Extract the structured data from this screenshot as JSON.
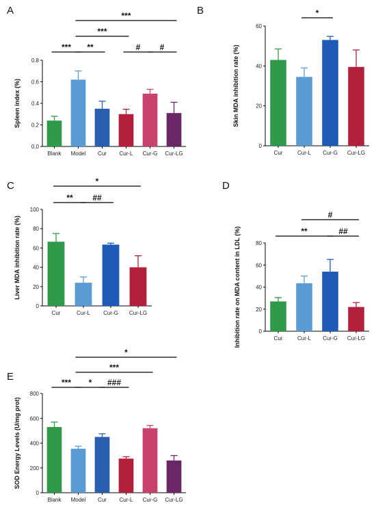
{
  "colors": {
    "green": "#2e9a4a",
    "light_blue": "#5b9bd5",
    "blue": "#2a5fb0",
    "royal_blue": "#1e5bb8",
    "crimson": "#b4203c",
    "pink": "#c8426e",
    "purple": "#6a2767"
  },
  "chart_data": [
    {
      "type": "bar",
      "panel_label": "A",
      "ylabel": "Spleen index (%)",
      "categories": [
        "Blank",
        "Model",
        "Cur",
        "Cur-L",
        "Cur-G",
        "Cur-LG"
      ],
      "values": [
        0.24,
        0.62,
        0.35,
        0.3,
        0.49,
        0.31
      ],
      "errors": [
        0.04,
        0.08,
        0.07,
        0.045,
        0.04,
        0.1
      ],
      "bar_colors": [
        "#2e9a4a",
        "#5b9bd5",
        "#2a5fb0",
        "#b4203c",
        "#c8426e",
        "#6a2767"
      ],
      "ylim": [
        0,
        0.8
      ],
      "yticks": [
        "0.0",
        "0.2",
        "0.4",
        "0.6",
        "0.8"
      ],
      "significance": [
        {
          "from": 0,
          "to": 1,
          "label": "***",
          "level": 0
        },
        {
          "from": 1,
          "to": 2,
          "label": "**",
          "level": 0
        },
        {
          "from": 3,
          "to": 4,
          "label": "#",
          "level": 0
        },
        {
          "from": 4,
          "to": 5,
          "label": "#",
          "level": 0
        },
        {
          "from": 1,
          "to": 3,
          "label": "***",
          "level": 1
        },
        {
          "from": 1,
          "to": 5,
          "label": "***",
          "level": 2
        }
      ]
    },
    {
      "type": "bar",
      "panel_label": "B",
      "ylabel": "Skin MDA inhibition rate (%)",
      "categories": [
        "Cur",
        "Cur-L",
        "Cur-G",
        "Cur-LG"
      ],
      "values": [
        43,
        34.5,
        53,
        39.5
      ],
      "errors": [
        5.5,
        4.5,
        1.8,
        8.5
      ],
      "bar_colors": [
        "#2e9a4a",
        "#5b9bd5",
        "#1e5bb8",
        "#b4203c"
      ],
      "ylim": [
        0,
        60
      ],
      "yticks": [
        "0",
        "20",
        "40",
        "60"
      ],
      "significance": [
        {
          "from": 1,
          "to": 2,
          "label": "*",
          "level": 0
        }
      ]
    },
    {
      "type": "bar",
      "panel_label": "C",
      "ylabel": "Liver MDA inhibition rate (%)",
      "categories": [
        "Cur",
        "Cur-L",
        "Cur-G",
        "Cur-LG"
      ],
      "values": [
        66.5,
        24,
        63.5,
        40
      ],
      "errors": [
        8.5,
        6,
        1.5,
        12
      ],
      "bar_colors": [
        "#2e9a4a",
        "#5b9bd5",
        "#1e5bb8",
        "#b4203c"
      ],
      "ylim": [
        0,
        100
      ],
      "yticks": [
        "0",
        "20",
        "40",
        "60",
        "80",
        "100"
      ],
      "significance": [
        {
          "from": 0,
          "to": 1,
          "label": "**",
          "level": 0
        },
        {
          "from": 1,
          "to": 2,
          "label": "##",
          "level": 0
        },
        {
          "from": 0,
          "to": 3,
          "label": "*",
          "level": 1
        }
      ]
    },
    {
      "type": "bar",
      "panel_label": "D",
      "ylabel": "Inhibition rate on MDA content in LDL (%)",
      "categories": [
        "Cur",
        "Cur-L",
        "Cur-G",
        "Cur-LG"
      ],
      "values": [
        27,
        43.5,
        54,
        22
      ],
      "errors": [
        3.5,
        6.5,
        11,
        4
      ],
      "bar_colors": [
        "#2e9a4a",
        "#5b9bd5",
        "#1e5bb8",
        "#b4203c"
      ],
      "ylim": [
        0,
        80
      ],
      "yticks": [
        "0",
        "20",
        "40",
        "60",
        "80"
      ],
      "significance": [
        {
          "from": 0,
          "to": 2,
          "label": "**",
          "level": 0
        },
        {
          "from": 2,
          "to": 3,
          "label": "##",
          "level": 0
        },
        {
          "from": 1,
          "to": 3,
          "label": "#",
          "level": 1
        }
      ]
    },
    {
      "type": "bar",
      "panel_label": "E",
      "ylabel": "SOD Energy Levels (U/mg prot)",
      "categories": [
        "Blank",
        "Model",
        "Cur",
        "Cur-L",
        "Cur-G",
        "Cur-LG"
      ],
      "values": [
        530,
        355,
        450,
        275,
        520,
        260
      ],
      "errors": [
        40,
        20,
        25,
        15,
        22,
        40
      ],
      "bar_colors": [
        "#2e9a4a",
        "#5b9bd5",
        "#2a5fb0",
        "#b4203c",
        "#c8426e",
        "#6a2767"
      ],
      "ylim": [
        0,
        800
      ],
      "yticks": [
        "0",
        "200",
        "400",
        "600",
        "800"
      ],
      "significance": [
        {
          "from": 0,
          "to": 1,
          "label": "***",
          "level": 0
        },
        {
          "from": 1,
          "to": 2,
          "label": "*",
          "level": 0
        },
        {
          "from": 2,
          "to": 3,
          "label": "###",
          "level": 0
        },
        {
          "from": 1,
          "to": 4,
          "label": "***",
          "level": 1
        },
        {
          "from": 1,
          "to": 5,
          "label": "*",
          "level": 2
        }
      ]
    }
  ]
}
